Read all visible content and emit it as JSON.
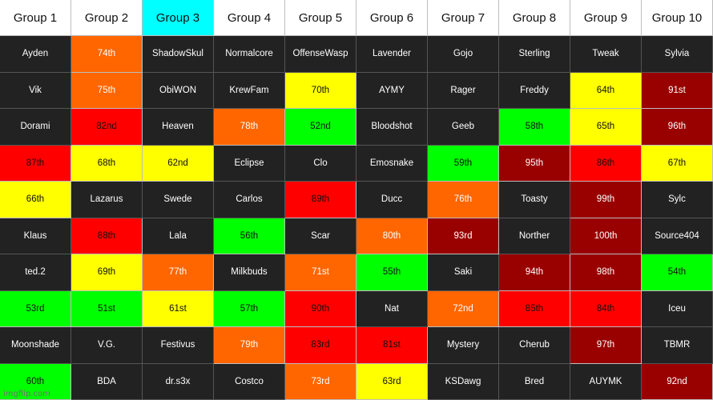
{
  "headers": [
    "Group 1",
    "Group 2",
    "Group 3",
    "Group 4",
    "Group 5",
    "Group 6",
    "Group 7",
    "Group 8",
    "Group 9",
    "Group 10"
  ],
  "highlight_header": "Group 3",
  "colors": {
    "dark": "#222222",
    "orange": "#ff6600",
    "yellow": "#ffff00",
    "red": "#ff0000",
    "green": "#00ff00",
    "maroon": "#990000",
    "header_highlight": "#00ffff"
  },
  "rows": [
    [
      [
        "Ayden",
        "dark"
      ],
      [
        "74th",
        "orange"
      ],
      [
        "ShadowSkul",
        "dark"
      ],
      [
        "Normalcore",
        "dark"
      ],
      [
        "OffenseWasp",
        "dark"
      ],
      [
        "Lavender",
        "dark"
      ],
      [
        "Gojo",
        "dark"
      ],
      [
        "Sterling",
        "dark"
      ],
      [
        "Tweak",
        "dark"
      ],
      [
        "Sylvia",
        "dark"
      ]
    ],
    [
      [
        "Vik",
        "dark"
      ],
      [
        "75th",
        "orange"
      ],
      [
        "ObiWON",
        "dark"
      ],
      [
        "KrewFam",
        "dark"
      ],
      [
        "70th",
        "yellow"
      ],
      [
        "AYMY",
        "dark"
      ],
      [
        "Rager",
        "dark"
      ],
      [
        "Freddy",
        "dark"
      ],
      [
        "64th",
        "yellow"
      ],
      [
        "91st",
        "maroon"
      ]
    ],
    [
      [
        "Dorami",
        "dark"
      ],
      [
        "82nd",
        "red"
      ],
      [
        "Heaven",
        "dark"
      ],
      [
        "78th",
        "orange"
      ],
      [
        "52nd",
        "green"
      ],
      [
        "Bloodshot",
        "dark"
      ],
      [
        "Geeb",
        "dark"
      ],
      [
        "58th",
        "green"
      ],
      [
        "65th",
        "yellow"
      ],
      [
        "96th",
        "maroon"
      ]
    ],
    [
      [
        "87th",
        "red"
      ],
      [
        "68th",
        "yellow"
      ],
      [
        "62nd",
        "yellow"
      ],
      [
        "Eclipse",
        "dark"
      ],
      [
        "Clo",
        "dark"
      ],
      [
        "Emosnake",
        "dark"
      ],
      [
        "59th",
        "green"
      ],
      [
        "95th",
        "maroon"
      ],
      [
        "86th",
        "red"
      ],
      [
        "67th",
        "yellow"
      ]
    ],
    [
      [
        "66th",
        "yellow"
      ],
      [
        "Lazarus",
        "dark"
      ],
      [
        "Swede",
        "dark"
      ],
      [
        "Carlos",
        "dark"
      ],
      [
        "89th",
        "red"
      ],
      [
        "Ducc",
        "dark"
      ],
      [
        "76th",
        "orange"
      ],
      [
        "Toasty",
        "dark"
      ],
      [
        "99th",
        "maroon"
      ],
      [
        "Sylc",
        "dark"
      ]
    ],
    [
      [
        "Klaus",
        "dark"
      ],
      [
        "88th",
        "red"
      ],
      [
        "Lala",
        "dark"
      ],
      [
        "56th",
        "green"
      ],
      [
        "Scar",
        "dark"
      ],
      [
        "80th",
        "orange"
      ],
      [
        "93rd",
        "maroon"
      ],
      [
        "Norther",
        "dark"
      ],
      [
        "100th",
        "maroon"
      ],
      [
        "Source404",
        "dark"
      ]
    ],
    [
      [
        "ted.2",
        "dark"
      ],
      [
        "69th",
        "yellow"
      ],
      [
        "77th",
        "orange"
      ],
      [
        "Milkbuds",
        "dark"
      ],
      [
        "71st",
        "orange"
      ],
      [
        "55th",
        "green"
      ],
      [
        "Saki",
        "dark"
      ],
      [
        "94th",
        "maroon"
      ],
      [
        "98th",
        "maroon"
      ],
      [
        "54th",
        "green"
      ]
    ],
    [
      [
        "53rd",
        "green"
      ],
      [
        "51st",
        "green"
      ],
      [
        "61st",
        "yellow"
      ],
      [
        "57th",
        "green"
      ],
      [
        "90th",
        "red"
      ],
      [
        "Nat",
        "dark"
      ],
      [
        "72nd",
        "orange"
      ],
      [
        "85th",
        "red"
      ],
      [
        "84th",
        "red"
      ],
      [
        "Iceu",
        "dark"
      ]
    ],
    [
      [
        "Moonshade",
        "dark"
      ],
      [
        "V.G.",
        "dark"
      ],
      [
        "Festivus",
        "dark"
      ],
      [
        "79th",
        "orange"
      ],
      [
        "83rd",
        "red"
      ],
      [
        "81st",
        "red"
      ],
      [
        "Mystery",
        "dark"
      ],
      [
        "Cherub",
        "dark"
      ],
      [
        "97th",
        "maroon"
      ],
      [
        "TBMR",
        "dark"
      ]
    ],
    [
      [
        "60th",
        "green"
      ],
      [
        "BDA",
        "dark"
      ],
      [
        "dr.s3x",
        "dark"
      ],
      [
        "Costco",
        "dark"
      ],
      [
        "73rd",
        "orange"
      ],
      [
        "63rd",
        "yellow"
      ],
      [
        "KSDawg",
        "dark"
      ],
      [
        "Bred",
        "dark"
      ],
      [
        "AUYMK",
        "dark"
      ],
      [
        "92nd",
        "maroon"
      ]
    ]
  ],
  "watermark": "imgflip.com"
}
